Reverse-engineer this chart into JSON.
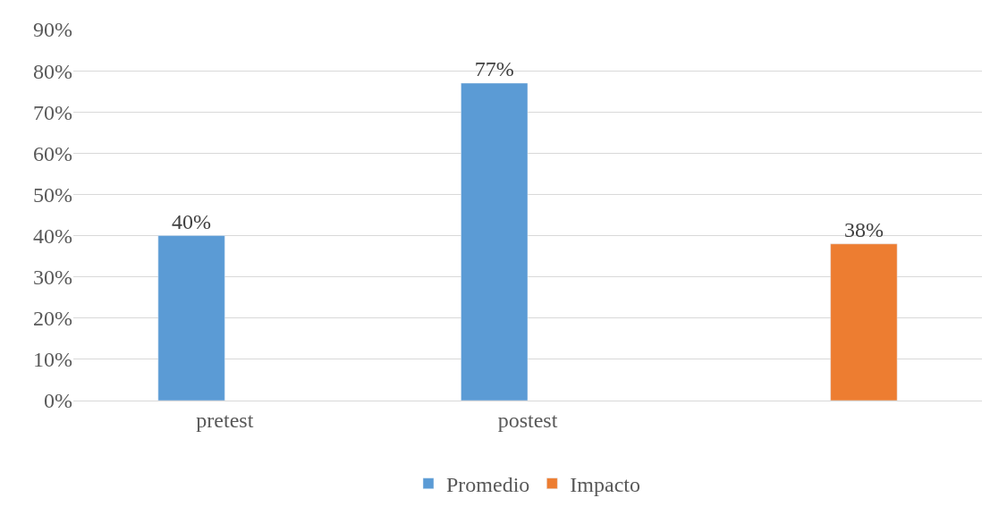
{
  "chart_data": {
    "type": "bar",
    "categories": [
      "pretest",
      "postest",
      null
    ],
    "series": [
      {
        "name": "Promedio",
        "color": "#5b9bd5",
        "values": [
          40,
          77,
          null
        ],
        "value_labels": [
          "40%",
          "77%",
          null
        ]
      },
      {
        "name": "Impacto",
        "color": "#ed7d31",
        "values": [
          null,
          null,
          38
        ],
        "value_labels": [
          null,
          null,
          "38%"
        ]
      }
    ],
    "ylim": [
      0,
      90
    ],
    "yticks": [
      {
        "value": 0,
        "label": "0%"
      },
      {
        "value": 10,
        "label": "10%"
      },
      {
        "value": 20,
        "label": "20%"
      },
      {
        "value": 30,
        "label": "30%"
      },
      {
        "value": 40,
        "label": "40%"
      },
      {
        "value": 50,
        "label": "50%"
      },
      {
        "value": 60,
        "label": "60%"
      },
      {
        "value": 70,
        "label": "70%"
      },
      {
        "value": 80,
        "label": "80%"
      },
      {
        "value": 90,
        "label": "90%"
      }
    ],
    "grid": "y",
    "legend": "bottom"
  }
}
